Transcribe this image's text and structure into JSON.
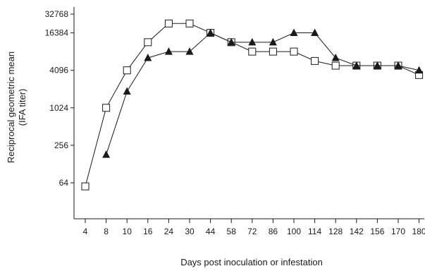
{
  "chart_data": {
    "type": "line",
    "title": "",
    "xlabel": "Days post inoculation or infestation",
    "ylabel_line1": "Reciprocal geometric mean",
    "ylabel_line2": "(IFA titer)",
    "yscale": "log2",
    "ylim": [
      32,
      32768
    ],
    "yticks": [
      64,
      256,
      1024,
      4096,
      16384,
      32768
    ],
    "ytick_labels": [
      "64",
      "256",
      "1024",
      "4096",
      "16384",
      "32768"
    ],
    "categories": [
      "4",
      "8",
      "10",
      "16",
      "24",
      "30",
      "44",
      "58",
      "72",
      "86",
      "100",
      "114",
      "128",
      "142",
      "156",
      "170",
      "180"
    ],
    "grid": false,
    "legend": "none",
    "series": [
      {
        "marker": "open-square",
        "color": "#1a1a1a",
        "values": [
          56,
          1024,
          4096,
          11585,
          23170,
          23170,
          16384,
          11585,
          8192,
          8192,
          8192,
          5793,
          4871,
          4871,
          4871,
          4871,
          3444
        ]
      },
      {
        "marker": "filled-triangle",
        "color": "#1a1a1a",
        "values": [
          null,
          181,
          1881,
          6502,
          8192,
          8192,
          16384,
          11585,
          11585,
          11585,
          16384,
          16384,
          6502,
          4871,
          4871,
          4871,
          4096
        ]
      }
    ]
  }
}
